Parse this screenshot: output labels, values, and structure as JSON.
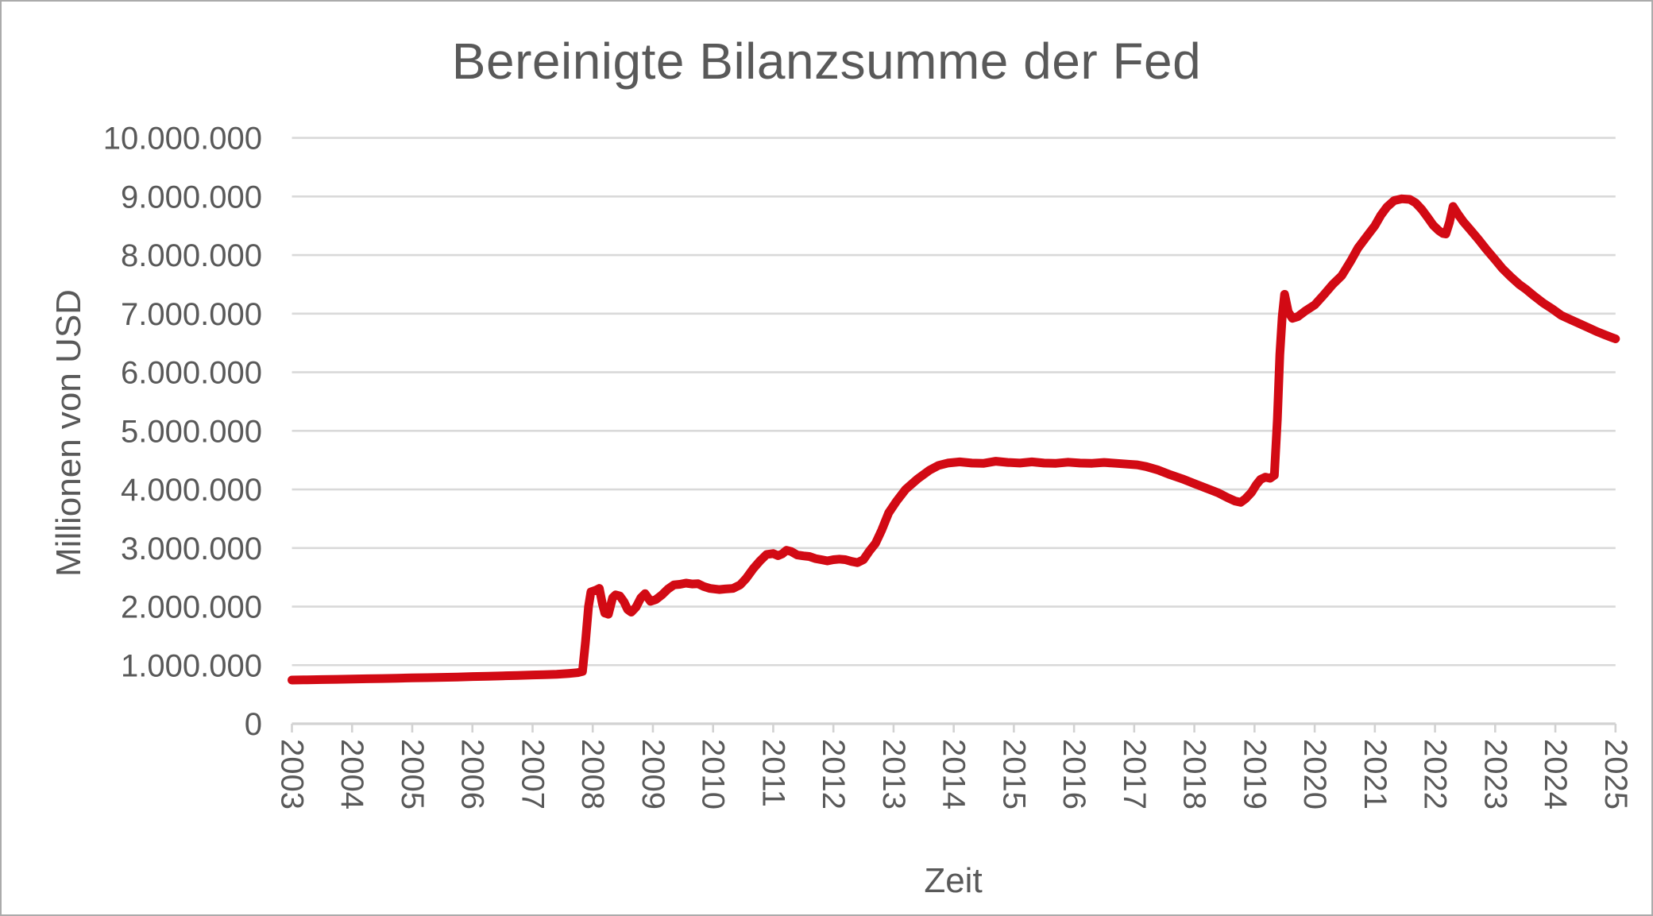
{
  "title": "Bereinigte Bilanzsumme der Fed",
  "style": {
    "line_red": "#d20a14",
    "text_gray": "#595959",
    "grid_gray": "#d9d9d9",
    "axis_gray": "#d2d2d2",
    "border_gray": "#ababab",
    "background": "#ffffff"
  },
  "chart_data": {
    "type": "line",
    "title": "Bereinigte Bilanzsumme der Fed",
    "xlabel": "Zeit",
    "ylabel": "Millionen von USD",
    "xlim": [
      2003,
      2025
    ],
    "ylim": [
      0,
      10000000
    ],
    "grid": "horizontal",
    "legend": "none",
    "x_ticks": [
      2003,
      2004,
      2005,
      2006,
      2007,
      2008,
      2009,
      2010,
      2011,
      2012,
      2013,
      2014,
      2015,
      2016,
      2017,
      2018,
      2019,
      2020,
      2021,
      2022,
      2023,
      2024,
      2025
    ],
    "y_tick_values": [
      0,
      1000000,
      2000000,
      3000000,
      4000000,
      5000000,
      6000000,
      7000000,
      8000000,
      9000000,
      10000000
    ],
    "y_tick_labels": [
      "0",
      "1.000.000",
      "2.000.000",
      "3.000.000",
      "4.000.000",
      "5.000.000",
      "6.000.000",
      "7.000.000",
      "8.000.000",
      "9.000.000",
      "10.000.000"
    ],
    "series": [
      {
        "name": "Bereinigte Bilanzsumme der Fed",
        "color": "#d20a14",
        "points": [
          [
            2003.0,
            746000
          ],
          [
            2003.25,
            750000
          ],
          [
            2003.5,
            754000
          ],
          [
            2003.75,
            758000
          ],
          [
            2004.0,
            762000
          ],
          [
            2004.25,
            767000
          ],
          [
            2004.5,
            772000
          ],
          [
            2004.75,
            777000
          ],
          [
            2005.0,
            782000
          ],
          [
            2005.25,
            787000
          ],
          [
            2005.5,
            792000
          ],
          [
            2005.75,
            798000
          ],
          [
            2006.0,
            805000
          ],
          [
            2006.25,
            811000
          ],
          [
            2006.5,
            818000
          ],
          [
            2006.75,
            825000
          ],
          [
            2007.0,
            832000
          ],
          [
            2007.2,
            838000
          ],
          [
            2007.4,
            845000
          ],
          [
            2007.6,
            858000
          ],
          [
            2007.75,
            872000
          ],
          [
            2007.83,
            893000
          ],
          [
            2007.88,
            1400000
          ],
          [
            2007.93,
            2000000
          ],
          [
            2007.97,
            2250000
          ],
          [
            2008.05,
            2280000
          ],
          [
            2008.11,
            2310000
          ],
          [
            2008.16,
            2050000
          ],
          [
            2008.2,
            1890000
          ],
          [
            2008.26,
            1870000
          ],
          [
            2008.33,
            2150000
          ],
          [
            2008.38,
            2200000
          ],
          [
            2008.45,
            2180000
          ],
          [
            2008.52,
            2080000
          ],
          [
            2008.58,
            1950000
          ],
          [
            2008.64,
            1905000
          ],
          [
            2008.72,
            1990000
          ],
          [
            2008.8,
            2150000
          ],
          [
            2008.87,
            2220000
          ],
          [
            2008.96,
            2090000
          ],
          [
            2009.05,
            2120000
          ],
          [
            2009.15,
            2200000
          ],
          [
            2009.25,
            2300000
          ],
          [
            2009.35,
            2370000
          ],
          [
            2009.45,
            2380000
          ],
          [
            2009.55,
            2400000
          ],
          [
            2009.65,
            2385000
          ],
          [
            2009.75,
            2390000
          ],
          [
            2009.85,
            2340000
          ],
          [
            2009.95,
            2310000
          ],
          [
            2010.1,
            2290000
          ],
          [
            2010.2,
            2300000
          ],
          [
            2010.33,
            2310000
          ],
          [
            2010.45,
            2370000
          ],
          [
            2010.55,
            2480000
          ],
          [
            2010.67,
            2650000
          ],
          [
            2010.78,
            2780000
          ],
          [
            2010.89,
            2890000
          ],
          [
            2011.0,
            2905000
          ],
          [
            2011.08,
            2870000
          ],
          [
            2011.15,
            2900000
          ],
          [
            2011.22,
            2960000
          ],
          [
            2011.3,
            2940000
          ],
          [
            2011.4,
            2880000
          ],
          [
            2011.5,
            2865000
          ],
          [
            2011.6,
            2855000
          ],
          [
            2011.7,
            2820000
          ],
          [
            2011.8,
            2800000
          ],
          [
            2011.9,
            2780000
          ],
          [
            2012.0,
            2800000
          ],
          [
            2012.1,
            2810000
          ],
          [
            2012.2,
            2800000
          ],
          [
            2012.3,
            2770000
          ],
          [
            2012.4,
            2750000
          ],
          [
            2012.5,
            2800000
          ],
          [
            2012.6,
            2950000
          ],
          [
            2012.7,
            3080000
          ],
          [
            2012.8,
            3300000
          ],
          [
            2012.92,
            3600000
          ],
          [
            2013.05,
            3800000
          ],
          [
            2013.2,
            4000000
          ],
          [
            2013.4,
            4180000
          ],
          [
            2013.6,
            4330000
          ],
          [
            2013.75,
            4410000
          ],
          [
            2013.9,
            4450000
          ],
          [
            2014.1,
            4470000
          ],
          [
            2014.3,
            4450000
          ],
          [
            2014.5,
            4445000
          ],
          [
            2014.7,
            4480000
          ],
          [
            2014.9,
            4460000
          ],
          [
            2015.1,
            4450000
          ],
          [
            2015.3,
            4470000
          ],
          [
            2015.5,
            4450000
          ],
          [
            2015.7,
            4445000
          ],
          [
            2015.9,
            4465000
          ],
          [
            2016.1,
            4450000
          ],
          [
            2016.3,
            4445000
          ],
          [
            2016.5,
            4460000
          ],
          [
            2016.7,
            4445000
          ],
          [
            2016.9,
            4430000
          ],
          [
            2017.05,
            4420000
          ],
          [
            2017.2,
            4390000
          ],
          [
            2017.4,
            4330000
          ],
          [
            2017.6,
            4250000
          ],
          [
            2017.8,
            4180000
          ],
          [
            2018.0,
            4100000
          ],
          [
            2018.2,
            4020000
          ],
          [
            2018.4,
            3940000
          ],
          [
            2018.55,
            3860000
          ],
          [
            2018.68,
            3800000
          ],
          [
            2018.77,
            3780000
          ],
          [
            2018.85,
            3840000
          ],
          [
            2018.95,
            3950000
          ],
          [
            2019.03,
            4080000
          ],
          [
            2019.1,
            4170000
          ],
          [
            2019.18,
            4210000
          ],
          [
            2019.26,
            4190000
          ],
          [
            2019.33,
            4240000
          ],
          [
            2019.38,
            5200000
          ],
          [
            2019.42,
            6300000
          ],
          [
            2019.46,
            6950000
          ],
          [
            2019.5,
            7330000
          ],
          [
            2019.56,
            7030000
          ],
          [
            2019.63,
            6920000
          ],
          [
            2019.72,
            6950000
          ],
          [
            2019.85,
            7050000
          ],
          [
            2020.0,
            7150000
          ],
          [
            2020.15,
            7320000
          ],
          [
            2020.3,
            7500000
          ],
          [
            2020.45,
            7650000
          ],
          [
            2020.6,
            7900000
          ],
          [
            2020.72,
            8120000
          ],
          [
            2020.85,
            8300000
          ],
          [
            2021.0,
            8500000
          ],
          [
            2021.1,
            8680000
          ],
          [
            2021.2,
            8820000
          ],
          [
            2021.32,
            8930000
          ],
          [
            2021.45,
            8960000
          ],
          [
            2021.58,
            8950000
          ],
          [
            2021.68,
            8890000
          ],
          [
            2021.78,
            8780000
          ],
          [
            2021.88,
            8640000
          ],
          [
            2021.97,
            8510000
          ],
          [
            2022.06,
            8420000
          ],
          [
            2022.13,
            8370000
          ],
          [
            2022.18,
            8360000
          ],
          [
            2022.24,
            8560000
          ],
          [
            2022.3,
            8830000
          ],
          [
            2022.38,
            8700000
          ],
          [
            2022.47,
            8570000
          ],
          [
            2022.58,
            8440000
          ],
          [
            2022.72,
            8270000
          ],
          [
            2022.85,
            8100000
          ],
          [
            2023.0,
            7920000
          ],
          [
            2023.12,
            7770000
          ],
          [
            2023.26,
            7630000
          ],
          [
            2023.4,
            7500000
          ],
          [
            2023.52,
            7410000
          ],
          [
            2023.65,
            7300000
          ],
          [
            2023.8,
            7180000
          ],
          [
            2023.95,
            7080000
          ],
          [
            2024.1,
            6970000
          ],
          [
            2024.25,
            6900000
          ],
          [
            2024.4,
            6830000
          ],
          [
            2024.55,
            6760000
          ],
          [
            2024.7,
            6690000
          ],
          [
            2024.82,
            6640000
          ],
          [
            2024.92,
            6600000
          ],
          [
            2025.0,
            6570000
          ]
        ]
      }
    ]
  }
}
